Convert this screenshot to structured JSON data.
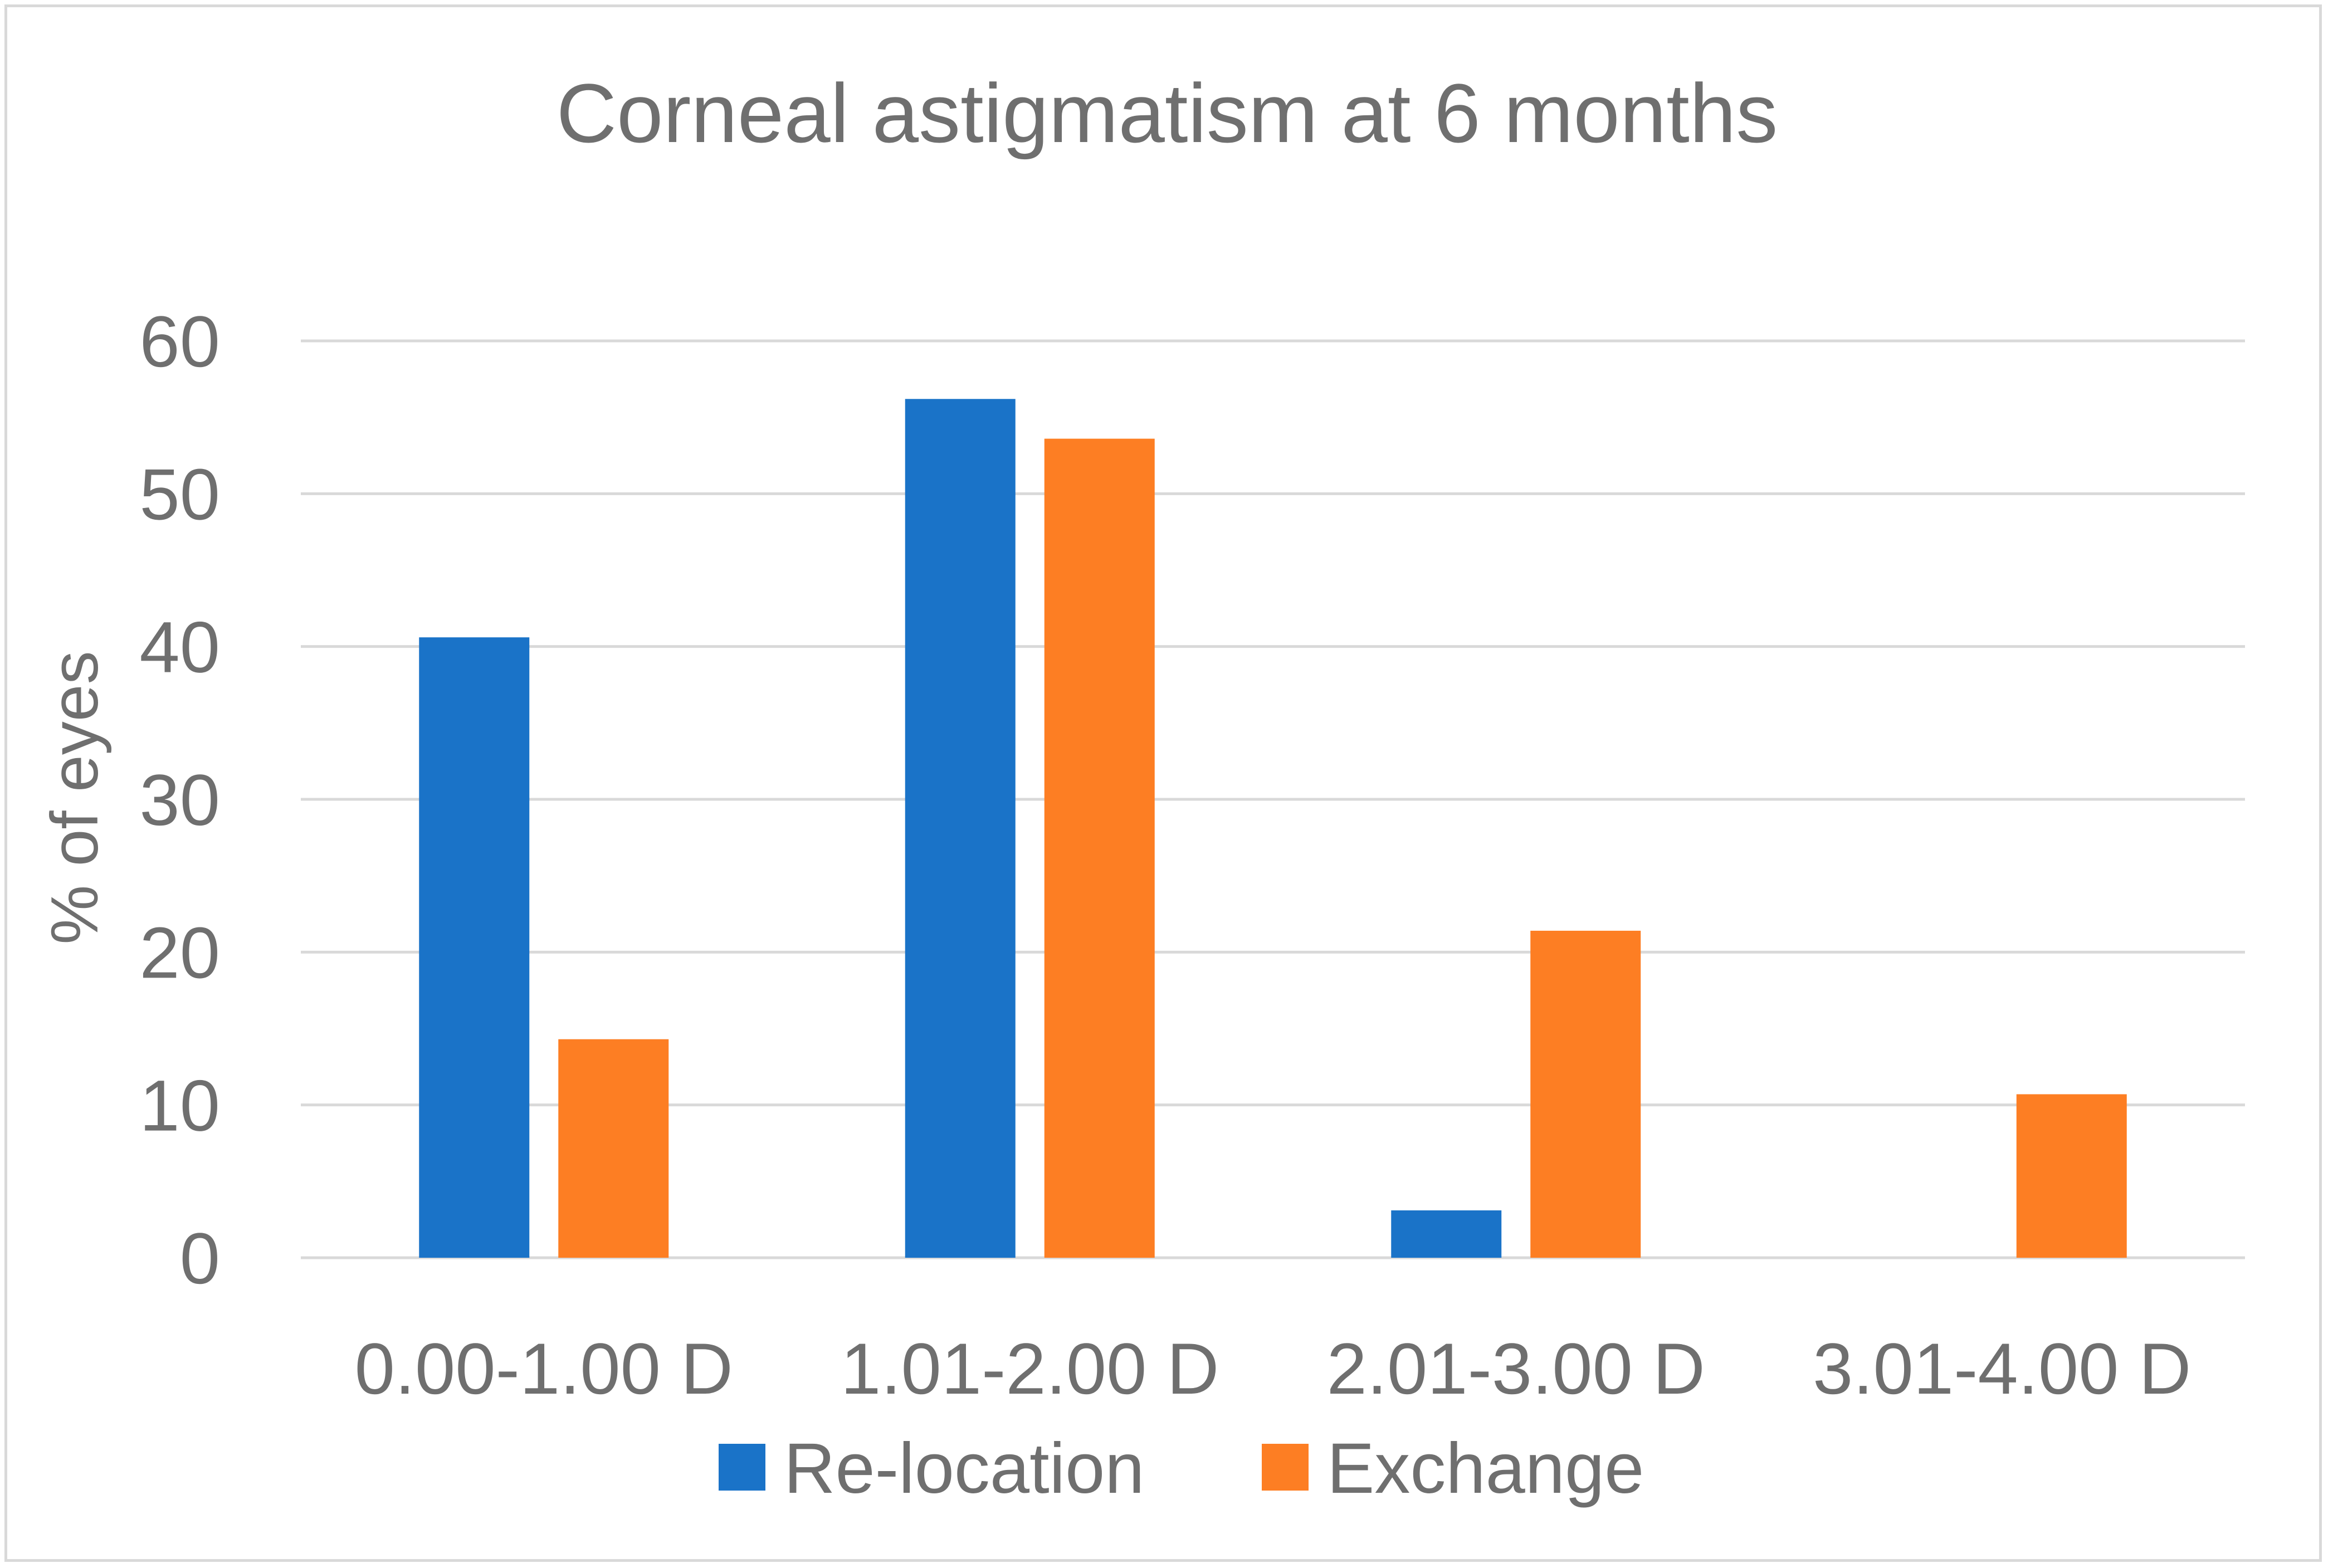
{
  "chart_data": {
    "type": "bar",
    "title": "Corneal astigmatism at 6 months",
    "ylabel": "% of eyes",
    "xlabel": "",
    "ylim": [
      0,
      60
    ],
    "yticks": [
      0,
      10,
      20,
      30,
      40,
      50,
      60
    ],
    "categories": [
      "0.00-1.00 D",
      "1.01-2.00 D",
      "2.01-3.00 D",
      "3.01-4.00 D"
    ],
    "series": [
      {
        "name": "Re-location",
        "color": "#1a73c8",
        "values": [
          40.6,
          56.2,
          3.1,
          0
        ]
      },
      {
        "name": "Exchange",
        "color": "#fd7e23",
        "values": [
          14.3,
          53.6,
          21.4,
          10.7
        ]
      }
    ],
    "grid": true,
    "legend_position": "bottom"
  }
}
